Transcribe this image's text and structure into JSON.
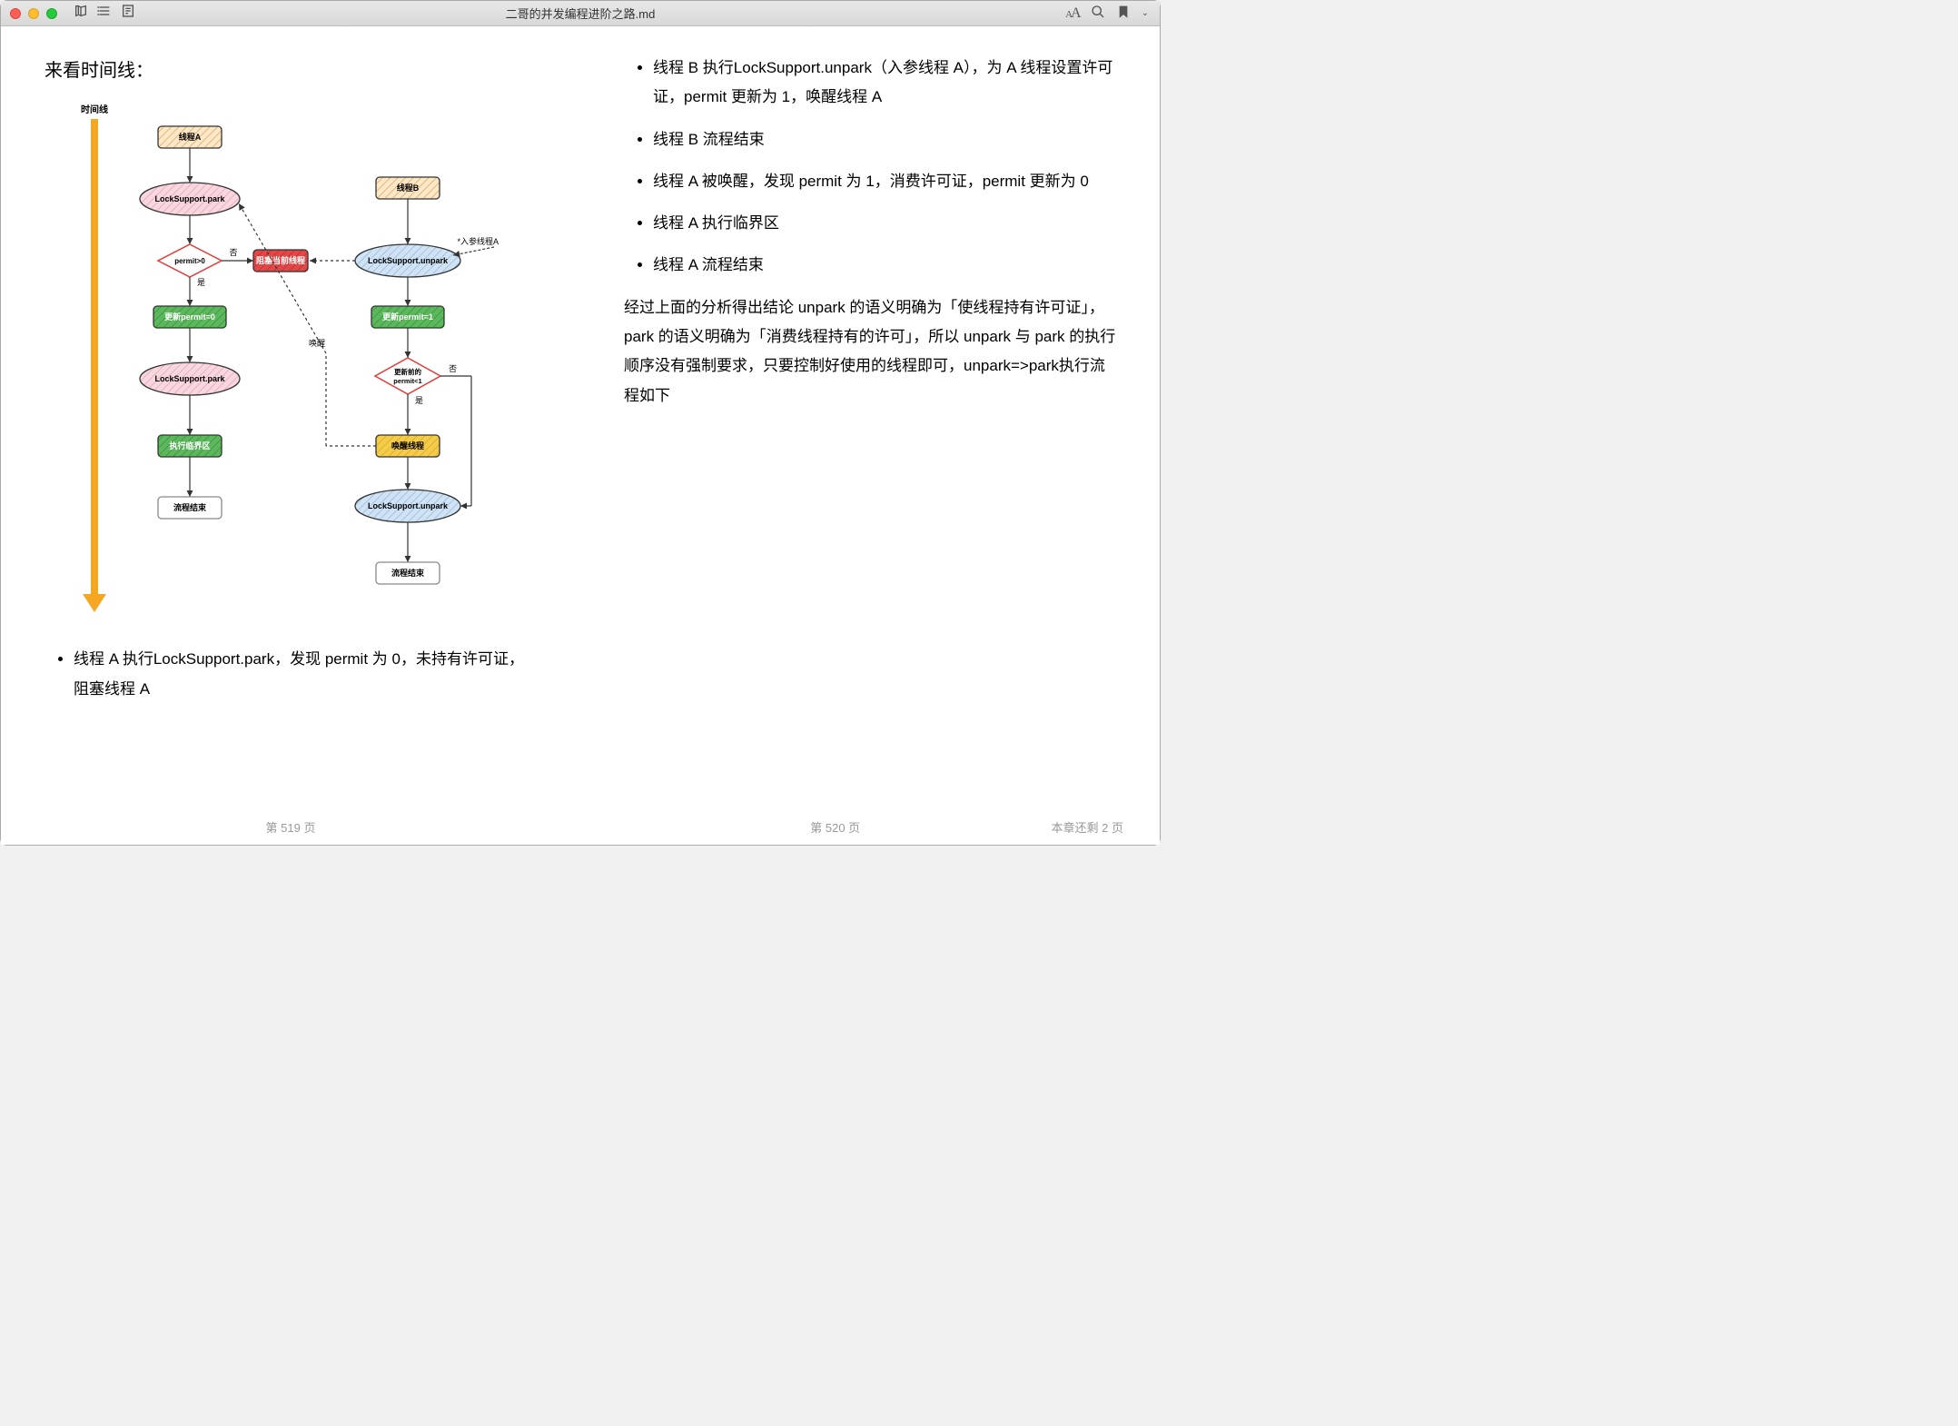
{
  "window": {
    "title": "二哥的并发编程进阶之路.md"
  },
  "left_page": {
    "heading": "来看时间线：",
    "bullet1": "线程 A 执行LockSupport.park，发现 permit 为 0，未持有许可证，阻塞线程 A",
    "page_label": "第 519 页"
  },
  "right_page": {
    "bullets": {
      "b1": "线程 B 执行LockSupport.unpark（入参线程 A），为 A 线程设置许可证，permit 更新为 1，唤醒线程 A",
      "b2": "线程 B 流程结束",
      "b3": "线程 A 被唤醒，发现 permit 为 1，消费许可证，permit 更新为 0",
      "b4": "线程 A 执行临界区",
      "b5": "线程 A 流程结束"
    },
    "conclusion": "经过上面的分析得出结论 unpark 的语义明确为「使线程持有许可证」，park 的语义明确为「消费线程持有的许可」，所以 unpark 与 park 的执行顺序没有强制要求，只要控制好使用的线程即可，unpark=>park执行流程如下",
    "page_label": "第 520 页",
    "remaining_label": "本章还剩 2 页"
  },
  "diagram": {
    "timeline_label": "时间线",
    "arrow_color": "#f5a623",
    "threadA": {
      "start": {
        "label": "线程A",
        "fill": "#fce8c6",
        "stroke": "#333"
      },
      "park1": {
        "label": "LockSupport.park",
        "fill": "#f9d7df",
        "stroke": "#333"
      },
      "decision": {
        "label": "permit>0",
        "stroke": "#e53935"
      },
      "block": {
        "label": "阻塞当前线程",
        "fill": "#e24848",
        "stroke": "#333",
        "text_color": "#fff"
      },
      "update": {
        "label": "更新permit=0",
        "fill": "#5cb85c",
        "stroke": "#333",
        "text_color": "#fff"
      },
      "park2": {
        "label": "LockSupport.park",
        "fill": "#f9d7df",
        "stroke": "#333"
      },
      "critical": {
        "label": "执行临界区",
        "fill": "#5cb85c",
        "stroke": "#333",
        "text_color": "#fff"
      },
      "end": {
        "label": "流程结束"
      },
      "yes_label": "是",
      "no_label": "否"
    },
    "threadB": {
      "start": {
        "label": "线程B",
        "fill": "#fce8c6",
        "stroke": "#333"
      },
      "unpark1": {
        "label": "LockSupport.unpark",
        "fill": "#cfe3f5",
        "stroke": "#333"
      },
      "param_note": "*入参线程A",
      "update": {
        "label": "更新permit=1",
        "fill": "#5cb85c",
        "stroke": "#333",
        "text_color": "#fff"
      },
      "decision": {
        "label_l1": "更新前的",
        "label_l2": "permit<1",
        "stroke": "#e53935"
      },
      "wake": {
        "label": "唤醒线程",
        "fill": "#f5cc4a",
        "stroke": "#333"
      },
      "unpark2": {
        "label": "LockSupport.unpark",
        "fill": "#cfe3f5",
        "stroke": "#333"
      },
      "end": {
        "label": "流程结束"
      },
      "yes_label": "是",
      "no_label": "否",
      "wake_label": "唤醒"
    }
  }
}
